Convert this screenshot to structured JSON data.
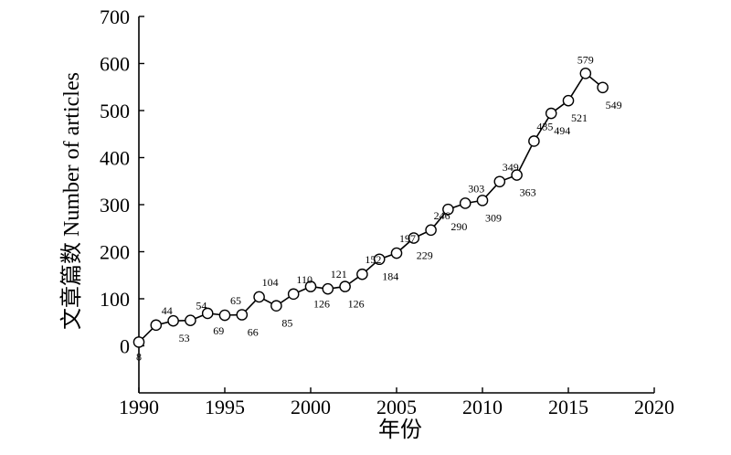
{
  "chart_data": {
    "type": "line",
    "title": "",
    "xlabel": "年份",
    "ylabel": "文章篇数 Number of articles",
    "x": [
      1990,
      1991,
      1992,
      1993,
      1994,
      1995,
      1996,
      1997,
      1998,
      1999,
      2000,
      2001,
      2002,
      2003,
      2004,
      2005,
      2006,
      2007,
      2008,
      2009,
      2010,
      2011,
      2012,
      2013,
      2014,
      2015,
      2016,
      2017
    ],
    "series": [
      {
        "values": [
          8,
          44,
          53,
          54,
          69,
          65,
          66,
          104,
          85,
          110,
          126,
          121,
          126,
          152,
          184,
          197,
          229,
          246,
          290,
          303,
          309,
          349,
          363,
          435,
          494,
          521,
          579,
          549
        ],
        "labels": [
          "8",
          "44",
          "53",
          "54",
          "69",
          "65",
          "66",
          "104",
          "85",
          "110",
          "126",
          "121",
          "126",
          "152",
          "184",
          "197",
          "229",
          "246",
          "290",
          "303",
          "309",
          "349",
          "363",
          "435",
          "494",
          "521",
          "579",
          "549"
        ],
        "label_positions": [
          "below",
          "above",
          "below",
          "above",
          "below",
          "above",
          "below",
          "above",
          "below",
          "above",
          "below",
          "above",
          "below",
          "above",
          "below",
          "above",
          "below",
          "above",
          "below",
          "above",
          "below",
          "above",
          "below",
          "above",
          "below",
          "below",
          "above",
          "below"
        ],
        "marker": "open-circle",
        "color": "#000000"
      }
    ],
    "xlim": [
      1990,
      2020
    ],
    "ylim": [
      -100,
      700
    ],
    "xticks": [
      "1990",
      "1995",
      "2000",
      "2005",
      "2010",
      "2015",
      "2020"
    ],
    "yticks": [
      "0",
      "100",
      "200",
      "300",
      "400",
      "500",
      "600",
      "700"
    ],
    "grid": false,
    "legend": "none"
  }
}
